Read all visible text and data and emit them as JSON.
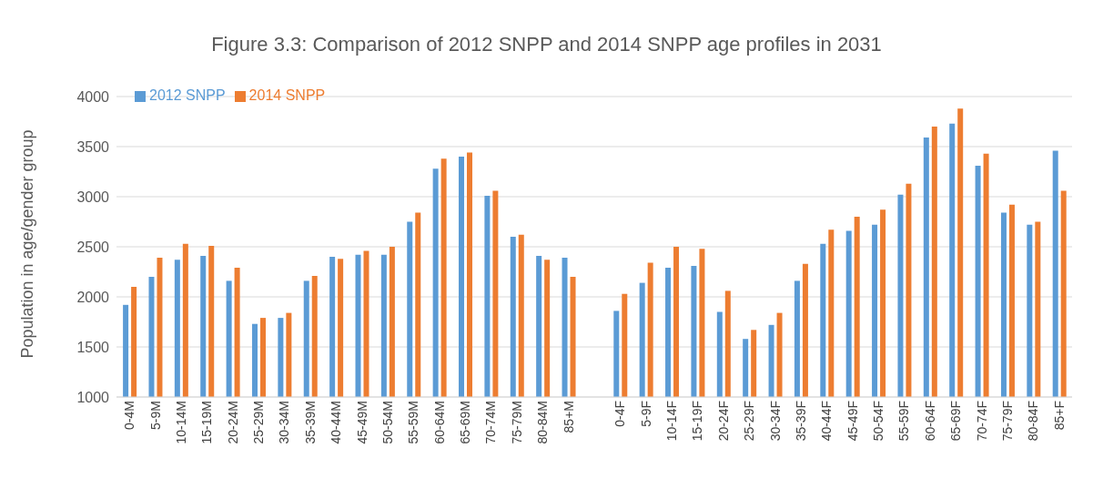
{
  "chart_data": {
    "type": "bar",
    "title": "Figure 3.3: Comparison of 2012 SNPP and 2014 SNPP age profiles in 2031",
    "ylabel": "Population in age/gender group",
    "categories": [
      "0-4M",
      "5-9M",
      "10-14M",
      "15-19M",
      "20-24M",
      "25-29M",
      "30-34M",
      "35-39M",
      "40-44M",
      "45-49M",
      "50-54M",
      "55-59M",
      "60-64M",
      "65-69M",
      "70-74M",
      "75-79M",
      "80-84M",
      "85+M",
      null,
      "0-4F",
      "5-9F",
      "10-14F",
      "15-19F",
      "20-24F",
      "25-29F",
      "30-34F",
      "35-39F",
      "40-44F",
      "45-49F",
      "50-54F",
      "55-59F",
      "60-64F",
      "65-69F",
      "70-74F",
      "75-79F",
      "80-84F",
      "85+F"
    ],
    "series": [
      {
        "name": "2012 SNPP",
        "color": "#5b9bd5",
        "values": [
          1920,
          2200,
          2370,
          2410,
          2160,
          1730,
          1790,
          2160,
          2400,
          2420,
          2420,
          2750,
          3280,
          3400,
          3010,
          2600,
          2410,
          2390,
          null,
          1860,
          2140,
          2290,
          2310,
          1850,
          1580,
          1720,
          2160,
          2530,
          2660,
          2720,
          3020,
          3590,
          3730,
          3310,
          2840,
          2720,
          3460
        ]
      },
      {
        "name": "2014 SNPP",
        "color": "#ed7d31",
        "values": [
          2100,
          2390,
          2530,
          2510,
          2290,
          1790,
          1840,
          2210,
          2380,
          2460,
          2500,
          2840,
          3380,
          3440,
          3060,
          2620,
          2370,
          2200,
          null,
          2030,
          2340,
          2500,
          2480,
          2060,
          1670,
          1840,
          2330,
          2670,
          2800,
          2870,
          3130,
          3700,
          3880,
          3430,
          2920,
          2750,
          3060
        ]
      }
    ],
    "ylim": [
      1000,
      4000
    ],
    "yticks": [
      1000,
      1500,
      2000,
      2500,
      3000,
      3500,
      4000
    ],
    "grid": "y",
    "legend": "top left"
  }
}
